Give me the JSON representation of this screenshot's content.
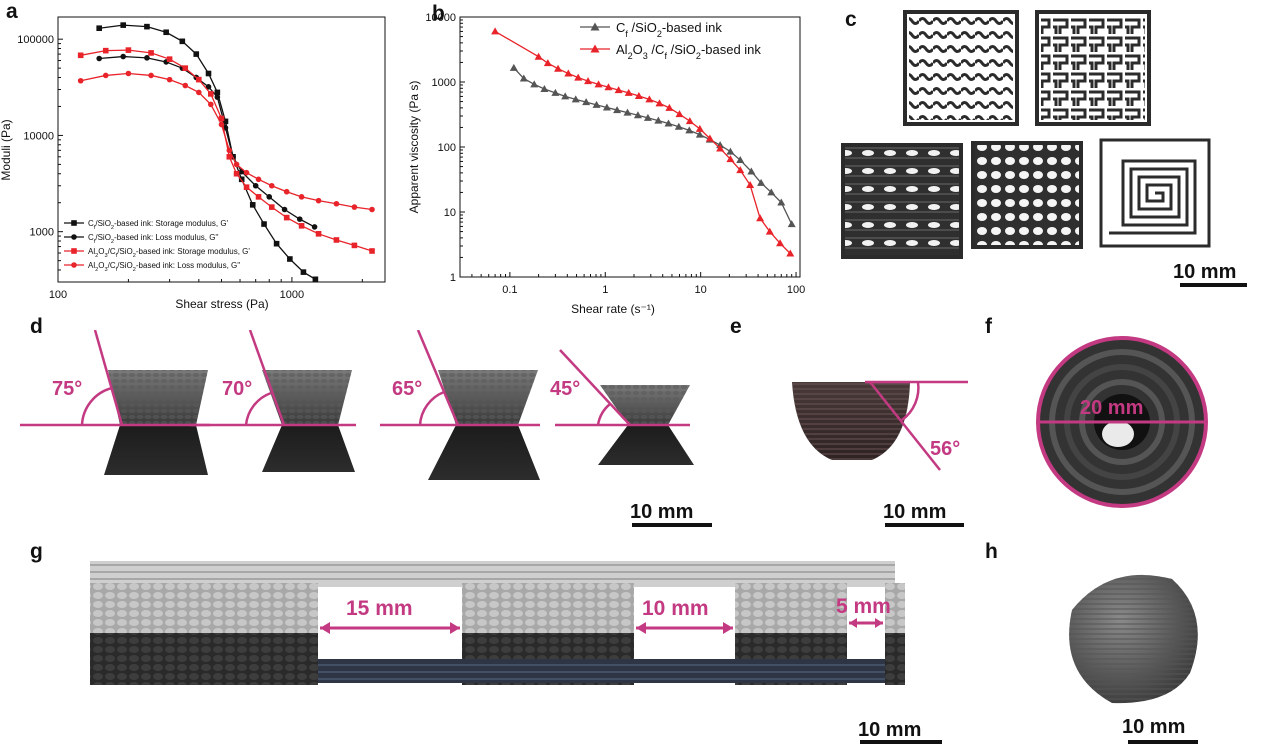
{
  "panel_labels": [
    "a",
    "b",
    "c",
    "d",
    "e",
    "f",
    "g",
    "h"
  ],
  "colors": {
    "black_series": "#111111",
    "red_series": "#e8232a",
    "gray_series": "#555555",
    "accent": "#c33a82"
  },
  "chart_data": [
    {
      "type": "line",
      "panel": "a",
      "xlabel": "Shear stress (Pa)",
      "ylabel": "Moduli (Pa)",
      "x_scale": "log",
      "y_scale": "log",
      "xlim": [
        100,
        2500
      ],
      "ylim": [
        300,
        170000
      ],
      "x_ticks": [
        "100",
        "1000"
      ],
      "y_ticks": [
        "1000",
        "10000",
        "100000"
      ],
      "legend_position": "bottom-left",
      "series": [
        {
          "name": "Cf/SiO2-based ink: Storage modulus, G'",
          "color": "#111111",
          "marker": "square",
          "x": [
            150,
            190,
            240,
            290,
            340,
            390,
            440,
            480,
            520,
            560,
            610,
            680,
            760,
            860,
            980,
            1120,
            1260
          ],
          "y": [
            130000,
            140000,
            135000,
            118000,
            95000,
            70000,
            44000,
            28000,
            14000,
            6000,
            3500,
            1900,
            1200,
            750,
            520,
            380,
            320
          ]
        },
        {
          "name": "Cf/SiO2-based ink: Loss modulus, G''",
          "color": "#111111",
          "marker": "circle",
          "x": [
            150,
            190,
            240,
            290,
            340,
            390,
            440,
            480,
            520,
            560,
            610,
            700,
            800,
            930,
            1080,
            1250
          ],
          "y": [
            63000,
            66000,
            64000,
            58000,
            50000,
            40000,
            32000,
            25000,
            12000,
            6000,
            4200,
            3000,
            2300,
            1700,
            1350,
            1120
          ]
        },
        {
          "name": "Al2O3/Cf/SiO2-based ink: Storage modulus, G'",
          "color": "#e8232a",
          "marker": "square",
          "x": [
            125,
            160,
            200,
            250,
            300,
            350,
            400,
            450,
            500,
            540,
            580,
            640,
            720,
            820,
            950,
            1100,
            1300,
            1550,
            1850,
            2200
          ],
          "y": [
            68000,
            76000,
            77000,
            72000,
            62000,
            50000,
            38000,
            27000,
            15000,
            6000,
            4000,
            2900,
            2300,
            1800,
            1400,
            1150,
            950,
            820,
            720,
            630
          ]
        },
        {
          "name": "Al2O3/Cf/SiO2-based ink: Loss modulus, G''",
          "color": "#e8232a",
          "marker": "circle",
          "x": [
            125,
            160,
            200,
            250,
            300,
            350,
            400,
            450,
            500,
            540,
            580,
            640,
            720,
            820,
            950,
            1100,
            1300,
            1550,
            1850,
            2200
          ],
          "y": [
            37000,
            42000,
            44000,
            42000,
            38000,
            33000,
            28000,
            21000,
            13000,
            7000,
            5000,
            4100,
            3500,
            3000,
            2600,
            2300,
            2100,
            1950,
            1800,
            1700
          ]
        }
      ]
    },
    {
      "type": "line",
      "panel": "b",
      "xlabel": "Shear rate (s⁻¹)",
      "ylabel": "Apparent viscosity (Pa s)",
      "x_scale": "log",
      "y_scale": "log",
      "xlim": [
        0.03,
        110
      ],
      "ylim": [
        1,
        10000
      ],
      "x_ticks": [
        "0.1",
        "1",
        "10",
        "100"
      ],
      "y_ticks": [
        "1",
        "10",
        "100",
        "1000",
        "10000"
      ],
      "legend_position": "top-right",
      "series": [
        {
          "name": "Cf /SiO2-based ink",
          "color": "#555555",
          "marker": "triangle",
          "x": [
            0.11,
            0.14,
            0.18,
            0.23,
            0.3,
            0.38,
            0.49,
            0.63,
            0.81,
            1.04,
            1.33,
            1.71,
            2.2,
            2.8,
            3.6,
            4.6,
            5.9,
            7.6,
            9.8,
            12.5,
            16,
            20.5,
            26,
            34,
            43,
            55,
            70,
            90
          ],
          "y": [
            1650,
            1130,
            920,
            780,
            680,
            600,
            540,
            490,
            445,
            405,
            370,
            338,
            308,
            280,
            255,
            230,
            205,
            180,
            155,
            130,
            107,
            85,
            63,
            42,
            28,
            20,
            14,
            6.5
          ]
        },
        {
          "name": "Al2O3 /Cf /SiO2-based ink",
          "color": "#e8232a",
          "marker": "triangle",
          "x": [
            0.07,
            0.2,
            0.25,
            0.32,
            0.41,
            0.52,
            0.66,
            0.85,
            1.08,
            1.38,
            1.76,
            2.25,
            2.9,
            3.7,
            4.7,
            6.0,
            7.7,
            9.8,
            12.5,
            16,
            20.5,
            26,
            33,
            42,
            53,
            68,
            87
          ],
          "y": [
            6000,
            2450,
            1950,
            1600,
            1350,
            1170,
            1030,
            920,
            830,
            750,
            680,
            610,
            540,
            470,
            400,
            320,
            250,
            190,
            135,
            95,
            65,
            44,
            26,
            8,
            5,
            3.3,
            2.3
          ]
        }
      ]
    }
  ],
  "panel_c": {
    "scale_bar": "10 mm"
  },
  "panel_d": {
    "angles": [
      "75°",
      "70°",
      "65°",
      "45°"
    ],
    "scale_bar": "10 mm"
  },
  "panel_e": {
    "angle": "56°",
    "scale_bar": "10 mm"
  },
  "panel_f": {
    "dimension": "20 mm"
  },
  "panel_g": {
    "spans": [
      "15 mm",
      "10 mm",
      "5 mm"
    ],
    "scale_bar": "10 mm"
  },
  "panel_h": {
    "scale_bar": "10 mm"
  }
}
